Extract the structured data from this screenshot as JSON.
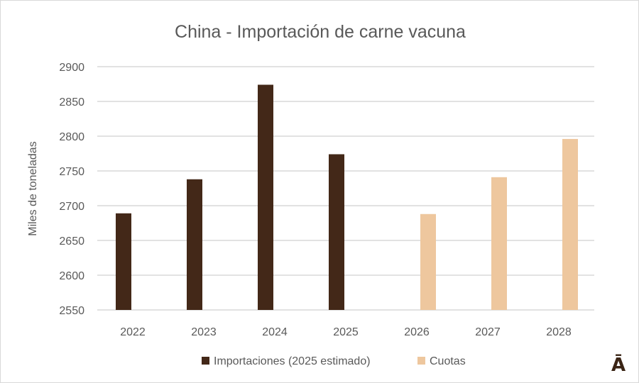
{
  "chart_data": {
    "type": "bar",
    "title": "China - Importación de carne vacuna",
    "xlabel": "",
    "ylabel": "Miles de toneladas",
    "ylim": [
      2550,
      2900
    ],
    "yticks": [
      2550,
      2600,
      2650,
      2700,
      2750,
      2800,
      2850,
      2900
    ],
    "grid": true,
    "legend_position": "bottom",
    "categories": [
      "2022",
      "2023",
      "2024",
      "2025",
      "2026",
      "2027",
      "2028"
    ],
    "series": [
      {
        "name": "Importaciones (2025 estimado)",
        "color": "#432818",
        "values": [
          2689,
          2738,
          2874,
          2774,
          null,
          null,
          null
        ]
      },
      {
        "name": "Cuotas",
        "color": "#EEC79E",
        "values": [
          null,
          null,
          null,
          null,
          2688,
          2741,
          2796
        ]
      }
    ]
  },
  "logo": {
    "text": "Ā",
    "color": "#3a2415"
  }
}
